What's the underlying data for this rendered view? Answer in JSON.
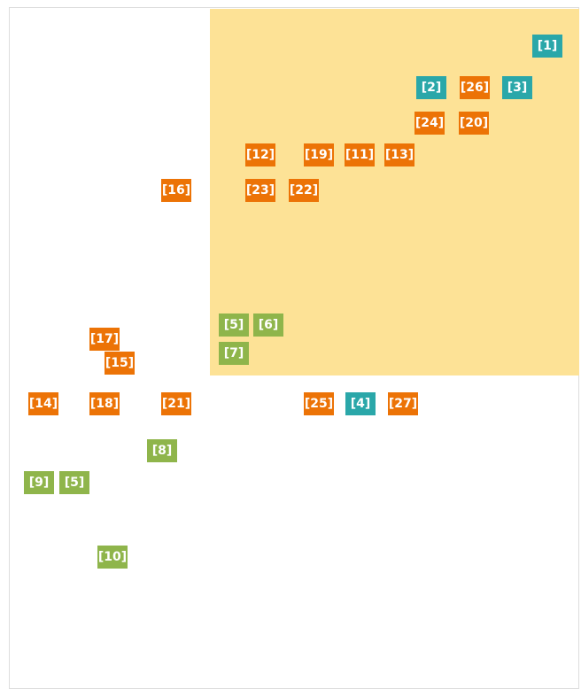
{
  "nodes": [
    {
      "label": "[1]",
      "color": "#2aa7a9"
    },
    {
      "label": "[2]",
      "color": "#2aa7a9"
    },
    {
      "label": "[26]",
      "color": "#ec7306"
    },
    {
      "label": "[3]",
      "color": "#2aa7a9"
    },
    {
      "label": "[24]",
      "color": "#ec7306"
    },
    {
      "label": "[20]",
      "color": "#ec7306"
    },
    {
      "label": "[12]",
      "color": "#ec7306"
    },
    {
      "label": "[19]",
      "color": "#ec7306"
    },
    {
      "label": "[11]",
      "color": "#ec7306"
    },
    {
      "label": "[13]",
      "color": "#ec7306"
    },
    {
      "label": "[16]",
      "color": "#ec7306"
    },
    {
      "label": "[23]",
      "color": "#ec7306"
    },
    {
      "label": "[22]",
      "color": "#ec7306"
    },
    {
      "label": "[5]",
      "color": "#8fb54b"
    },
    {
      "label": "[6]",
      "color": "#8fb54b"
    },
    {
      "label": "[7]",
      "color": "#8fb54b"
    },
    {
      "label": "[17]",
      "color": "#ec7306"
    },
    {
      "label": "[15]",
      "color": "#ec7306"
    },
    {
      "label": "[14]",
      "color": "#ec7306"
    },
    {
      "label": "[18]",
      "color": "#ec7306"
    },
    {
      "label": "[21]",
      "color": "#ec7306"
    },
    {
      "label": "[25]",
      "color": "#ec7306"
    },
    {
      "label": "[4]",
      "color": "#2aa7a9"
    },
    {
      "label": "[27]",
      "color": "#ec7306"
    },
    {
      "label": "[8]",
      "color": "#8fb54b"
    },
    {
      "label": "[9]",
      "color": "#8fb54b"
    },
    {
      "label": "[5]",
      "color": "#8fb54b"
    },
    {
      "label": "[10]",
      "color": "#8fb54b"
    }
  ]
}
